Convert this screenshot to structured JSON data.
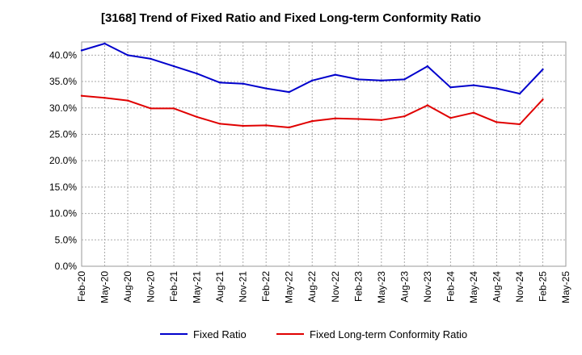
{
  "chart_data": {
    "type": "line",
    "title": "[3168]  Trend of Fixed Ratio and Fixed Long-term Conformity Ratio",
    "xlabel": "",
    "ylabel": "",
    "x": [
      "Feb-20",
      "May-20",
      "Aug-20",
      "Nov-20",
      "Feb-21",
      "May-21",
      "Aug-21",
      "Nov-21",
      "Feb-22",
      "May-22",
      "Aug-22",
      "Nov-22",
      "Feb-23",
      "May-23",
      "Aug-23",
      "Nov-23",
      "Feb-24",
      "May-24",
      "Aug-24",
      "Nov-24",
      "Feb-25",
      "May-25"
    ],
    "ylim": [
      0,
      42.5
    ],
    "yticks": [
      0,
      5,
      10,
      15,
      20,
      25,
      30,
      35,
      40
    ],
    "ytick_labels": [
      "0.0%",
      "5.0%",
      "10.0%",
      "15.0%",
      "20.0%",
      "25.0%",
      "30.0%",
      "35.0%",
      "40.0%"
    ],
    "grid": true,
    "legend_position": "bottom",
    "series": [
      {
        "name": "Fixed Ratio",
        "color": "#0000cc",
        "values": [
          40.9,
          42.2,
          40.0,
          39.3,
          37.9,
          36.5,
          34.8,
          34.6,
          33.7,
          33.0,
          35.2,
          36.3,
          35.4,
          35.2,
          35.4,
          37.9,
          33.9,
          34.3,
          33.7,
          32.7,
          37.3,
          null
        ]
      },
      {
        "name": "Fixed Long-term Conformity Ratio",
        "color": "#e00000",
        "values": [
          32.3,
          31.9,
          31.4,
          29.9,
          29.9,
          28.3,
          27.0,
          26.6,
          26.7,
          26.3,
          27.5,
          28.0,
          27.9,
          27.7,
          28.4,
          30.5,
          28.1,
          29.1,
          27.3,
          26.9,
          31.6,
          null
        ]
      }
    ]
  }
}
